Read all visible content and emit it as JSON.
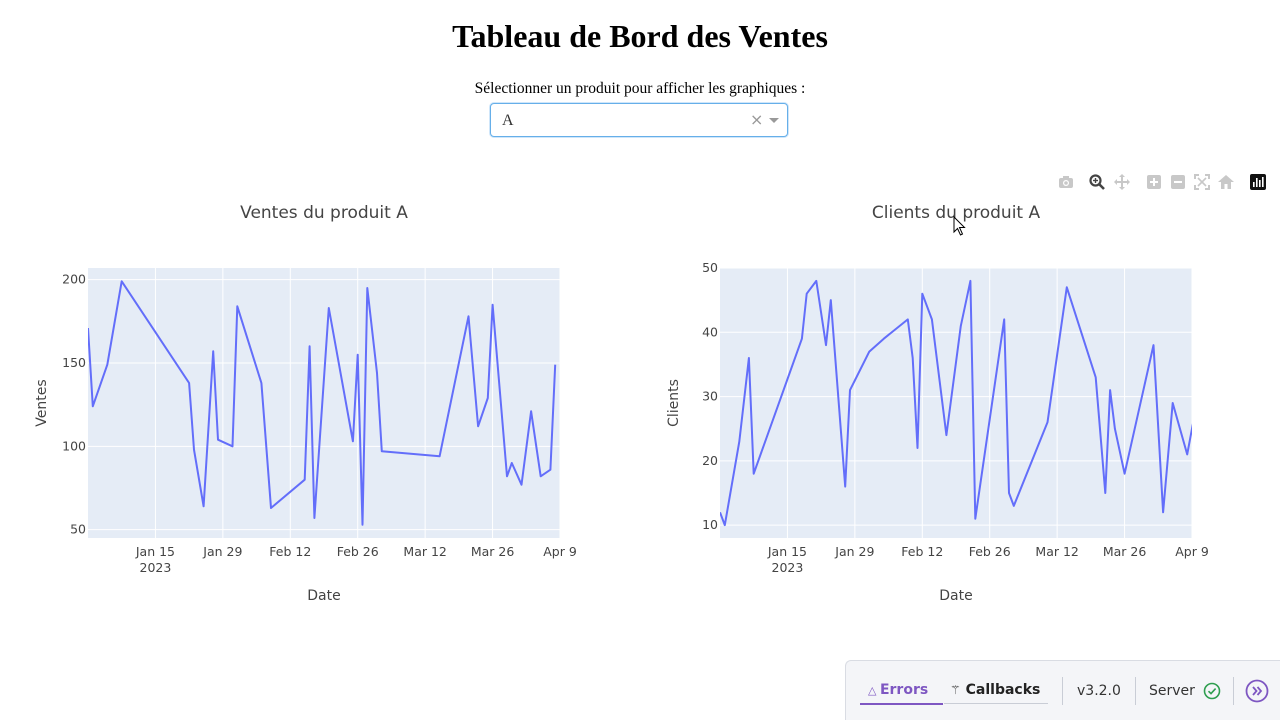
{
  "page": {
    "title": "Tableau de Bord des Ventes",
    "select_label": "Sélectionner un produit pour afficher les graphiques :"
  },
  "dropdown": {
    "value": "A",
    "clear_symbol": "×"
  },
  "modebar": {
    "icons": [
      "camera-icon",
      "zoom-icon",
      "pan-icon",
      "zoom-in-icon",
      "zoom-out-icon",
      "autoscale-icon",
      "reset-axes-icon",
      "plotly-logo-icon"
    ]
  },
  "chart_data": [
    {
      "type": "line",
      "title": "Ventes du produit A",
      "xlabel": "Date",
      "ylabel": "Ventes",
      "x": [
        "2023-01-01",
        "2023-01-02",
        "2023-01-05",
        "2023-01-08",
        "2023-01-22",
        "2023-01-23",
        "2023-01-25",
        "2023-01-27",
        "2023-01-28",
        "2023-01-31",
        "2023-02-01",
        "2023-02-06",
        "2023-02-08",
        "2023-02-15",
        "2023-02-16",
        "2023-02-17",
        "2023-02-20",
        "2023-02-25",
        "2023-02-26",
        "2023-02-27",
        "2023-02-28",
        "2023-03-02",
        "2023-03-03",
        "2023-03-15",
        "2023-03-21",
        "2023-03-23",
        "2023-03-25",
        "2023-03-26",
        "2023-03-29",
        "2023-03-30",
        "2023-04-01",
        "2023-04-03",
        "2023-04-05",
        "2023-04-07",
        "2023-04-08"
      ],
      "values": [
        171,
        124,
        149,
        199,
        138,
        98,
        64,
        157,
        104,
        100,
        184,
        138,
        63,
        80,
        160,
        57,
        183,
        103,
        155,
        53,
        195,
        144,
        97,
        94,
        178,
        112,
        129,
        185,
        82,
        90,
        77,
        121,
        82,
        86,
        149
      ],
      "xticks": [
        "Jan 15",
        "Jan 29",
        "Feb 12",
        "Feb 26",
        "Mar 12",
        "Mar 26",
        "Apr 9"
      ],
      "year_label": "2023",
      "yticks": [
        "50",
        "100",
        "150",
        "200"
      ],
      "xlim": [
        "2023-01-01",
        "2023-04-09"
      ],
      "ylim": [
        45,
        207
      ],
      "grid": true,
      "color": "#636efa",
      "plot_bg": "#e5ecf6"
    },
    {
      "type": "line",
      "title": "Clients du produit A",
      "xlabel": "Date",
      "ylabel": "Clients",
      "x": [
        "2023-01-01",
        "2023-01-02",
        "2023-01-05",
        "2023-01-07",
        "2023-01-08",
        "2023-01-18",
        "2023-01-19",
        "2023-01-21",
        "2023-01-23",
        "2023-01-24",
        "2023-01-27",
        "2023-01-28",
        "2023-02-01",
        "2023-02-04",
        "2023-02-09",
        "2023-02-10",
        "2023-02-11",
        "2023-02-12",
        "2023-02-14",
        "2023-02-17",
        "2023-02-20",
        "2023-02-22",
        "2023-02-23",
        "2023-03-01",
        "2023-03-02",
        "2023-03-03",
        "2023-03-10",
        "2023-03-14",
        "2023-03-20",
        "2023-03-22",
        "2023-03-23",
        "2023-03-24",
        "2023-03-26",
        "2023-04-01",
        "2023-04-03",
        "2023-04-05",
        "2023-04-08",
        "2023-04-10"
      ],
      "values": [
        12,
        10,
        23,
        36,
        18,
        39,
        46,
        48,
        38,
        45,
        16,
        31,
        37,
        39,
        42,
        36,
        22,
        46,
        42,
        24,
        41,
        48,
        11,
        42,
        15,
        13,
        26,
        47,
        33,
        15,
        31,
        25,
        18,
        38,
        12,
        29,
        21,
        29
      ],
      "xticks": [
        "Jan 15",
        "Jan 29",
        "Feb 12",
        "Feb 26",
        "Mar 12",
        "Mar 26",
        "Apr 9"
      ],
      "year_label": "2023",
      "yticks": [
        "10",
        "20",
        "30",
        "40",
        "50"
      ],
      "xlim": [
        "2023-01-01",
        "2023-04-09"
      ],
      "ylim": [
        8,
        50
      ],
      "grid": true,
      "color": "#636efa",
      "plot_bg": "#e5ecf6"
    }
  ],
  "devtools": {
    "errors_label": "Errors",
    "callbacks_label": "Callbacks",
    "version": "v3.2.0",
    "server_label": "Server",
    "accent": "#7e57c2",
    "server_ok_color": "#2e9e4f"
  }
}
